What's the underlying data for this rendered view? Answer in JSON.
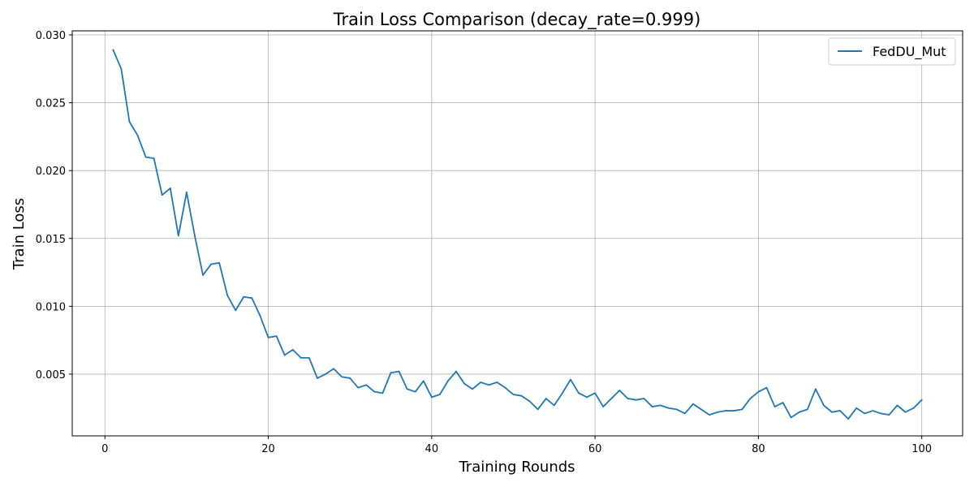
{
  "chart_data": {
    "type": "line",
    "title": "Train Loss Comparison (decay_rate=0.999)",
    "xlabel": "Training Rounds",
    "ylabel": "Train Loss",
    "xlim": [
      -4,
      105
    ],
    "ylim": [
      0.00045,
      0.0303
    ],
    "xticks": [
      0,
      20,
      40,
      60,
      80,
      100
    ],
    "xtick_labels": [
      "0",
      "20",
      "40",
      "60",
      "80",
      "100"
    ],
    "yticks": [
      0.005,
      0.01,
      0.015,
      0.02,
      0.025,
      0.03
    ],
    "ytick_labels": [
      "0.005",
      "0.010",
      "0.015",
      "0.020",
      "0.025",
      "0.030"
    ],
    "grid": true,
    "legend_position": "top-right",
    "series": [
      {
        "name": "FedDU_Mut",
        "color": "#1f77b4",
        "x": [
          1,
          2,
          3,
          4,
          5,
          6,
          7,
          8,
          9,
          10,
          11,
          12,
          13,
          14,
          15,
          16,
          17,
          18,
          19,
          20,
          21,
          22,
          23,
          24,
          25,
          26,
          27,
          28,
          29,
          30,
          31,
          32,
          33,
          34,
          35,
          36,
          37,
          38,
          39,
          40,
          41,
          42,
          43,
          44,
          45,
          46,
          47,
          48,
          49,
          50,
          51,
          52,
          53,
          54,
          55,
          56,
          57,
          58,
          59,
          60,
          61,
          62,
          63,
          64,
          65,
          66,
          67,
          68,
          69,
          70,
          71,
          72,
          73,
          74,
          75,
          76,
          77,
          78,
          79,
          80,
          81,
          82,
          83,
          84,
          85,
          86,
          87,
          88,
          89,
          90,
          91,
          92,
          93,
          94,
          95,
          96,
          97,
          98,
          99,
          100
        ],
        "values": [
          0.0289,
          0.0275,
          0.0236,
          0.0226,
          0.021,
          0.0209,
          0.0182,
          0.0187,
          0.0152,
          0.0184,
          0.0152,
          0.0123,
          0.0131,
          0.0132,
          0.0108,
          0.0097,
          0.0107,
          0.0106,
          0.0093,
          0.0077,
          0.0078,
          0.0064,
          0.0068,
          0.0062,
          0.0062,
          0.0047,
          0.005,
          0.0054,
          0.0048,
          0.0047,
          0.004,
          0.0042,
          0.0037,
          0.0036,
          0.0051,
          0.0052,
          0.0039,
          0.0037,
          0.0045,
          0.0033,
          0.0035,
          0.0045,
          0.0052,
          0.0043,
          0.0039,
          0.0044,
          0.0042,
          0.0044,
          0.004,
          0.0035,
          0.0034,
          0.003,
          0.0024,
          0.0032,
          0.0027,
          0.0036,
          0.0046,
          0.0036,
          0.0033,
          0.0036,
          0.0026,
          0.0032,
          0.0038,
          0.0032,
          0.0031,
          0.0032,
          0.0026,
          0.0027,
          0.0025,
          0.0024,
          0.0021,
          0.0028,
          0.0024,
          0.002,
          0.0022,
          0.0023,
          0.0023,
          0.0024,
          0.0032,
          0.0037,
          0.004,
          0.0026,
          0.0029,
          0.0018,
          0.0022,
          0.0024,
          0.0039,
          0.0027,
          0.0022,
          0.0023,
          0.0017,
          0.0025,
          0.0021,
          0.0023,
          0.0021,
          0.002,
          0.0027,
          0.0022,
          0.0025,
          0.0031
        ]
      }
    ]
  }
}
